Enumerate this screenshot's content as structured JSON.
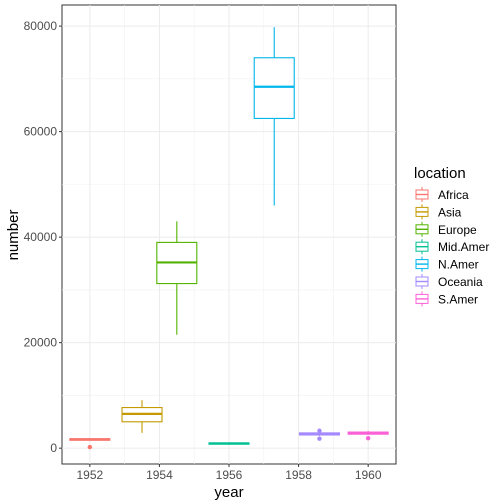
{
  "chart_data": {
    "type": "boxplot",
    "title": "",
    "xlabel": "year",
    "ylabel": "number",
    "x_ticks": [
      "1952",
      "1954",
      "1956",
      "1958",
      "1960"
    ],
    "y_ticks": [
      "0",
      "20000",
      "40000",
      "60000",
      "80000"
    ],
    "xlim": [
      1951.2,
      1960.8
    ],
    "ylim": [
      -3000,
      84000
    ],
    "grid": true,
    "legend": {
      "title": "location",
      "placement": "right",
      "entries": [
        "Africa",
        "Asia",
        "Europe",
        "Mid.Amer",
        "N.Amer",
        "Oceania",
        "S.Amer"
      ]
    },
    "series": [
      {
        "name": "Africa",
        "x": 1952,
        "min": 1400,
        "q1": 1500,
        "median": 1650,
        "q3": 1800,
        "max": 1900,
        "outliers": [
          200
        ],
        "color": "#F8766D"
      },
      {
        "name": "Asia",
        "x": 1953.5,
        "min": 2900,
        "q1": 5000,
        "median": 6500,
        "q3": 7700,
        "max": 9100,
        "outliers": [],
        "color": "#C49A00"
      },
      {
        "name": "Europe",
        "x": 1954.5,
        "min": 21500,
        "q1": 31200,
        "median": 35200,
        "q3": 39000,
        "max": 43000,
        "outliers": [],
        "color": "#53B400"
      },
      {
        "name": "Mid.Amer",
        "x": 1956,
        "min": 650,
        "q1": 750,
        "median": 900,
        "q3": 1000,
        "max": 1100,
        "outliers": [],
        "color": "#00C094"
      },
      {
        "name": "N.Amer",
        "x": 1957.3,
        "min": 46000,
        "q1": 62500,
        "median": 68500,
        "q3": 74000,
        "max": 79800,
        "outliers": [],
        "color": "#00B6EB"
      },
      {
        "name": "Oceania",
        "x": 1958.6,
        "min": 2300,
        "q1": 2500,
        "median": 2700,
        "q3": 2900,
        "max": 3100,
        "outliers": [
          1800,
          3300
        ],
        "color": "#A58AFF"
      },
      {
        "name": "S.Amer",
        "x": 1960,
        "min": 2500,
        "q1": 2650,
        "median": 2850,
        "q3": 3050,
        "max": 3250,
        "outliers": [
          1900
        ],
        "color": "#FB61D7"
      }
    ]
  }
}
